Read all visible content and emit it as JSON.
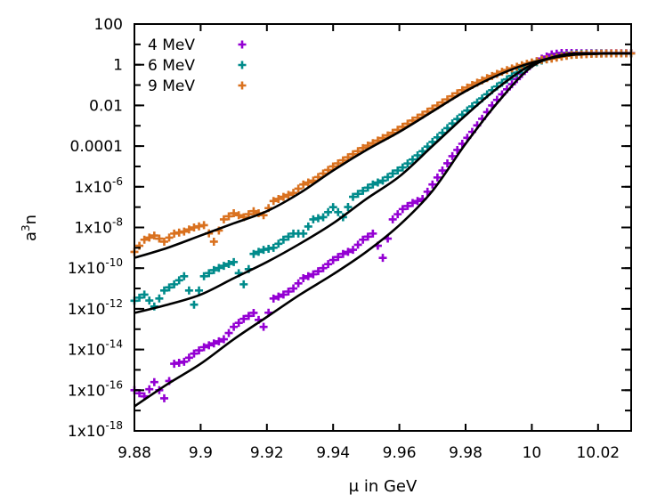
{
  "chart_data": {
    "type": "scatter",
    "title": "",
    "xlabel": "μ in GeV",
    "ylabel": {
      "base": "a",
      "sup": "3",
      "rest": "n"
    },
    "xlim": [
      9.88,
      10.03
    ],
    "ylim": [
      1e-18,
      100
    ],
    "yscale": "log",
    "grid": false,
    "legend_position": "top-left",
    "x_ticks": [
      "9.88",
      "9.9",
      "9.92",
      "9.94",
      "9.96",
      "9.98",
      "10",
      "10.02"
    ],
    "y_ticks": [
      {
        "value": 100,
        "text": "100"
      },
      {
        "value": 1,
        "text": "1"
      },
      {
        "value": 0.01,
        "text": "0.01"
      },
      {
        "value": 0.0001,
        "text": "0.0001"
      },
      {
        "value": 1e-06,
        "text": "1x10",
        "sup": "-6"
      },
      {
        "value": 1e-08,
        "text": "1x10",
        "sup": "-8"
      },
      {
        "value": 1e-10,
        "text": "1x10",
        "sup": "-10"
      },
      {
        "value": 1e-12,
        "text": "1x10",
        "sup": "-12"
      },
      {
        "value": 1e-14,
        "text": "1x10",
        "sup": "-14"
      },
      {
        "value": 1e-16,
        "text": "1x10",
        "sup": "-16"
      },
      {
        "value": 1e-18,
        "text": "1x10",
        "sup": "-18"
      }
    ],
    "x": [
      9.88,
      9.883,
      9.886,
      9.889,
      9.892,
      9.895,
      9.898,
      9.901,
      9.904,
      9.907,
      9.91,
      9.913,
      9.916,
      9.919,
      9.922,
      9.925,
      9.928,
      9.931,
      9.934,
      9.937,
      9.94,
      9.943,
      9.946,
      9.949,
      9.952,
      9.955,
      9.958,
      9.961,
      9.964,
      9.967,
      9.97,
      9.973,
      9.976,
      9.979,
      9.982,
      9.985,
      9.988,
      9.991,
      9.994,
      9.997,
      10.0,
      10.003,
      10.006,
      10.009,
      10.012,
      10.015,
      10.018,
      10.021,
      10.024,
      10.027,
      10.03
    ],
    "series": [
      {
        "name": "4 MeV",
        "color": "#9400d3",
        "values": [
          1e-16,
          5e-17,
          2.5e-16,
          4e-17,
          2e-15,
          2.5e-15,
          6.3e-15,
          1.3e-14,
          2e-14,
          3.2e-14,
          1.3e-13,
          3.2e-13,
          6.3e-13,
          1.3e-13,
          3.2e-12,
          5e-12,
          1e-11,
          3.2e-11,
          5e-11,
          1e-10,
          2.5e-10,
          5e-10,
          8e-10,
          2.5e-09,
          5e-09,
          3.2e-10,
          2.5e-08,
          8e-08,
          1.6e-07,
          2.5e-07,
          1.3e-06,
          6.3e-06,
          3.2e-05,
          0.00013,
          0.0005,
          0.0022,
          0.01,
          0.035,
          0.11,
          0.35,
          1.1,
          2.0,
          3.2,
          3.8,
          3.8,
          3.7,
          3.7,
          3.7,
          3.7,
          3.7,
          3.7
        ],
        "fit_x": [
          9.88,
          9.89,
          9.9,
          9.91,
          9.92,
          9.93,
          9.94,
          9.95,
          9.96,
          9.97,
          9.98,
          9.99,
          10.0,
          10.01,
          10.02,
          10.03
        ],
        "fit_y": [
          1.6e-17,
          2e-16,
          2e-15,
          3.2e-14,
          4e-13,
          5e-12,
          5e-11,
          6.3e-10,
          1.3e-08,
          6.3e-07,
          0.00013,
          0.016,
          0.8,
          3.2,
          3.6,
          3.6
        ]
      },
      {
        "name": "6 MeV",
        "color": "#008b8b",
        "values": [
          2.5e-12,
          5e-12,
          1.3e-12,
          8e-12,
          1.6e-11,
          4e-11,
          1.6e-12,
          4e-11,
          8e-11,
          1.3e-10,
          2e-10,
          1.6e-11,
          5e-10,
          8e-10,
          1e-09,
          2.5e-09,
          5e-09,
          5e-09,
          2.5e-08,
          3.2e-08,
          1e-07,
          3.2e-08,
          3.2e-07,
          6.3e-07,
          1.3e-06,
          2e-06,
          4.5e-06,
          8.9e-06,
          2.2e-05,
          5.6e-05,
          0.00016,
          0.00045,
          0.0013,
          0.0035,
          0.0089,
          0.022,
          0.056,
          0.13,
          0.28,
          0.58,
          1.1,
          1.6,
          2.1,
          2.7,
          3.2,
          3.4,
          3.5,
          3.6,
          3.6,
          3.6,
          3.6
        ],
        "fit_x": [
          9.88,
          9.89,
          9.9,
          9.91,
          9.92,
          9.93,
          9.94,
          9.95,
          9.96,
          9.97,
          9.98,
          9.99,
          10.0,
          10.01,
          10.02,
          10.03
        ],
        "fit_y": [
          6.3e-13,
          1.6e-12,
          5e-12,
          3.2e-11,
          2e-10,
          1.6e-09,
          1.6e-08,
          2.5e-07,
          3.2e-06,
          0.0001,
          0.0032,
          0.079,
          1.0,
          2.8,
          3.5,
          3.6
        ]
      },
      {
        "name": "9 MeV",
        "color": "#d9711f",
        "values": [
          6.3e-10,
          2.5e-09,
          4e-09,
          2e-09,
          5e-09,
          6.3e-09,
          1e-08,
          1.3e-08,
          2e-09,
          2.5e-08,
          5e-08,
          3.2e-08,
          6.3e-08,
          4e-08,
          2e-07,
          3.2e-07,
          5e-07,
          1.3e-06,
          2e-06,
          4.5e-06,
          1e-05,
          2e-05,
          4e-05,
          8e-05,
          0.00014,
          0.00025,
          0.00045,
          0.00089,
          0.0018,
          0.0035,
          0.007,
          0.014,
          0.028,
          0.056,
          0.1,
          0.17,
          0.28,
          0.45,
          0.66,
          0.95,
          1.3,
          1.7,
          2.0,
          2.5,
          3.0,
          3.2,
          3.4,
          3.5,
          3.6,
          3.6,
          3.6
        ],
        "fit_x": [
          9.88,
          9.89,
          9.9,
          9.91,
          9.92,
          9.93,
          9.94,
          9.95,
          9.96,
          9.97,
          9.98,
          9.99,
          10.0,
          10.01,
          10.02,
          10.03
        ],
        "fit_y": [
          3.2e-10,
          1e-09,
          4e-09,
          1.6e-08,
          6.3e-08,
          5e-07,
          6.3e-06,
          6.3e-05,
          0.0005,
          0.005,
          0.05,
          0.32,
          1.26,
          2.8,
          3.5,
          3.6
        ]
      }
    ]
  }
}
